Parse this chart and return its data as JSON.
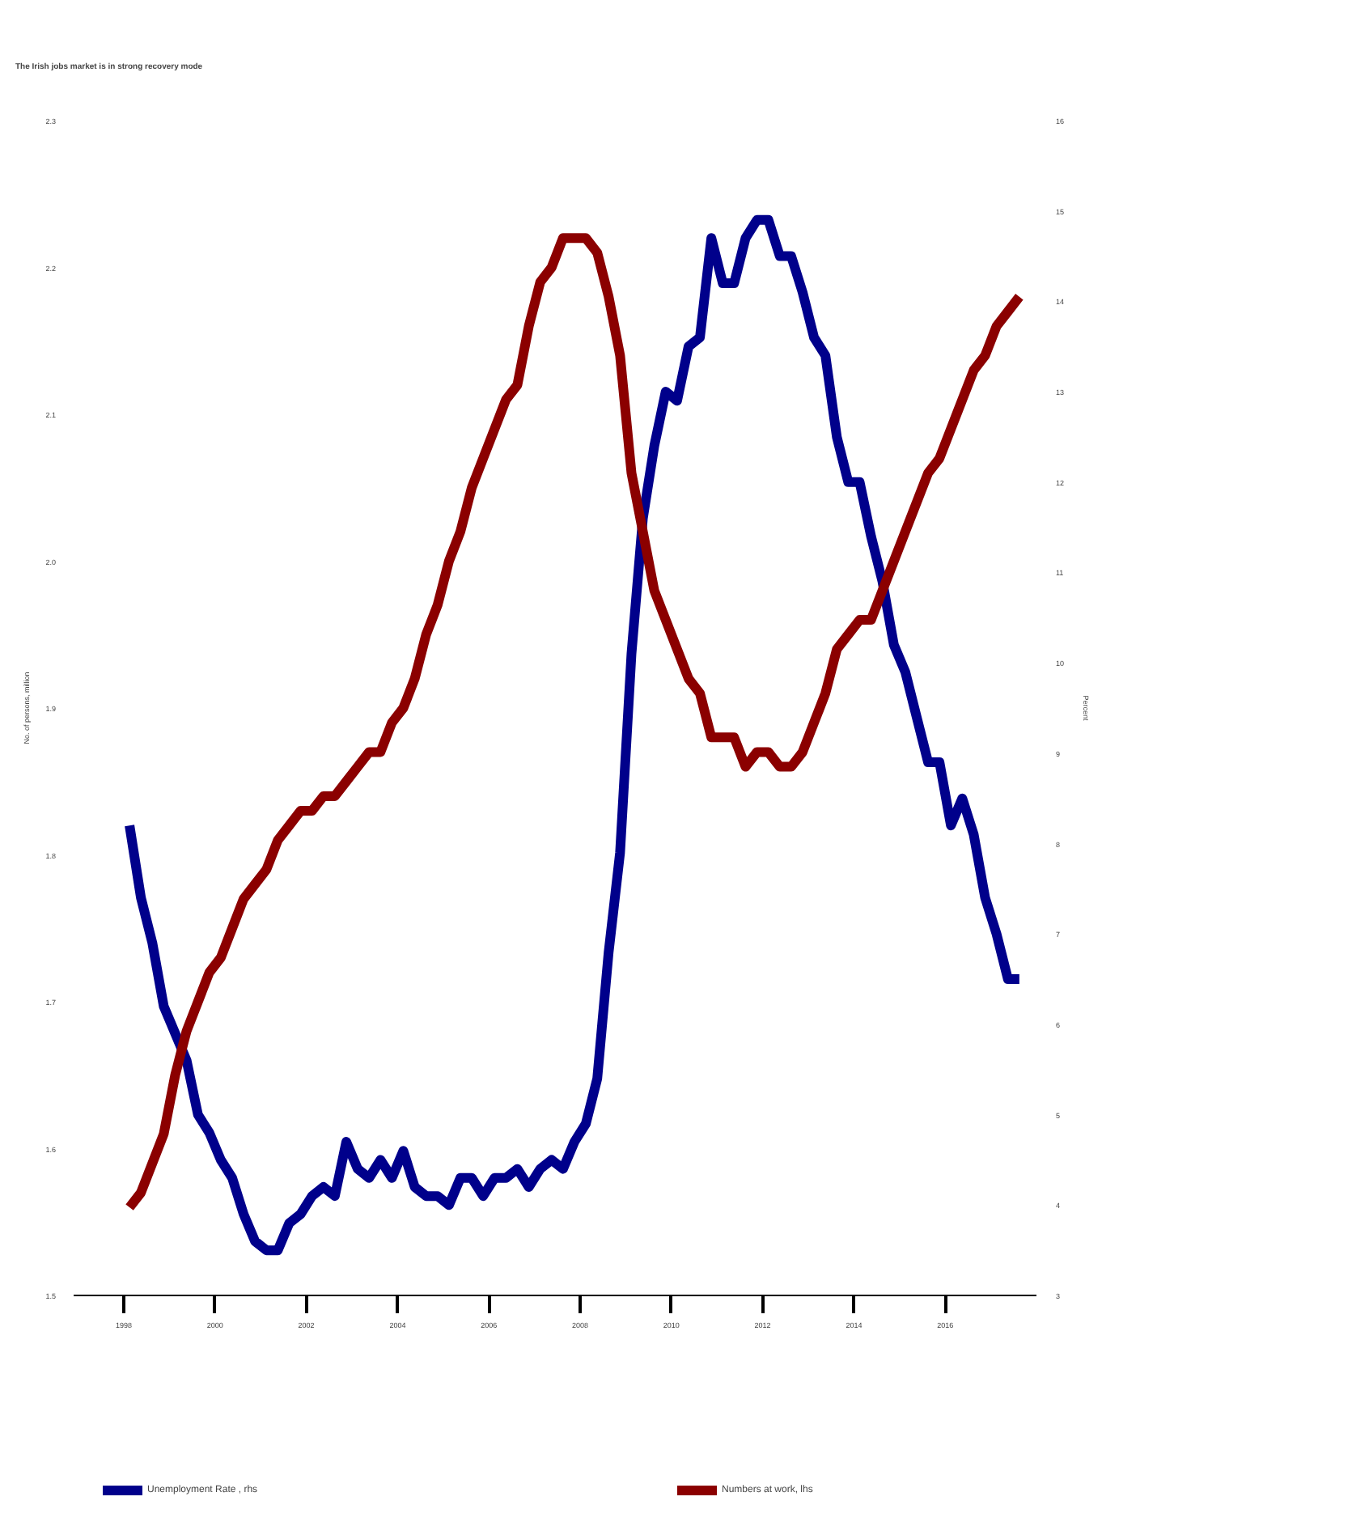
{
  "chart_data": {
    "type": "line",
    "title": "The Irish jobs market is in strong recovery mode",
    "ylabel": "No. of persons, million",
    "y2label": "Percent",
    "x": [
      1998.125,
      1998.375,
      1998.625,
      1998.875,
      1999.125,
      1999.375,
      1999.625,
      1999.875,
      2000.125,
      2000.375,
      2000.625,
      2000.875,
      2001.125,
      2001.375,
      2001.625,
      2001.875,
      2002.125,
      2002.375,
      2002.625,
      2002.875,
      2003.125,
      2003.375,
      2003.625,
      2003.875,
      2004.125,
      2004.375,
      2004.625,
      2004.875,
      2005.125,
      2005.375,
      2005.625,
      2005.875,
      2006.125,
      2006.375,
      2006.625,
      2006.875,
      2007.125,
      2007.375,
      2007.625,
      2007.875,
      2008.125,
      2008.375,
      2008.625,
      2008.875,
      2009.125,
      2009.375,
      2009.625,
      2009.875,
      2010.125,
      2010.375,
      2010.625,
      2010.875,
      2011.125,
      2011.375,
      2011.625,
      2011.875,
      2012.125,
      2012.375,
      2012.625,
      2012.875,
      2013.125,
      2013.375,
      2013.625,
      2013.875,
      2014.125,
      2014.375,
      2014.625,
      2014.875,
      2015.125,
      2015.375,
      2015.625,
      2015.875,
      2016.125,
      2016.375,
      2016.625,
      2016.875,
      2017.125,
      2017.375,
      2017.625
    ],
    "series": [
      {
        "name": "Unemployment Rate , rhs",
        "color": "#00008b",
        "axis": "y2",
        "values": [
          8.2,
          7.4,
          6.9,
          6.2,
          5.9,
          5.6,
          5.0,
          4.8,
          4.5,
          4.3,
          3.9,
          3.6,
          3.5,
          3.5,
          3.8,
          3.9,
          4.1,
          4.2,
          4.1,
          4.7,
          4.4,
          4.3,
          4.5,
          4.3,
          4.6,
          4.2,
          4.1,
          4.1,
          4.0,
          4.3,
          4.3,
          4.1,
          4.3,
          4.3,
          4.4,
          4.2,
          4.4,
          4.5,
          4.4,
          4.7,
          4.9,
          5.4,
          6.8,
          7.9,
          10.1,
          11.6,
          12.4,
          13.0,
          12.9,
          13.5,
          13.6,
          14.7,
          14.2,
          14.2,
          14.7,
          14.9,
          14.9,
          14.5,
          14.5,
          14.1,
          13.6,
          13.4,
          12.5,
          12.0,
          12.0,
          11.4,
          10.9,
          10.2,
          9.9,
          9.4,
          8.9,
          8.9,
          8.2,
          8.5,
          8.1,
          7.4,
          7.0,
          6.5,
          6.5
        ]
      },
      {
        "name": "Numbers at work, lhs",
        "color": "#8b0000",
        "values": [
          1.56,
          1.57,
          1.59,
          1.61,
          1.65,
          1.68,
          1.7,
          1.72,
          1.73,
          1.75,
          1.77,
          1.78,
          1.79,
          1.81,
          1.82,
          1.83,
          1.83,
          1.84,
          1.84,
          1.85,
          1.86,
          1.87,
          1.87,
          1.89,
          1.9,
          1.92,
          1.95,
          1.97,
          2.0,
          2.02,
          2.05,
          2.07,
          2.09,
          2.11,
          2.12,
          2.16,
          2.19,
          2.2,
          2.22,
          2.22,
          2.22,
          2.21,
          2.18,
          2.14,
          2.06,
          2.02,
          1.98,
          1.96,
          1.94,
          1.92,
          1.91,
          1.88,
          1.88,
          1.88,
          1.86,
          1.87,
          1.87,
          1.86,
          1.86,
          1.87,
          1.89,
          1.91,
          1.94,
          1.95,
          1.96,
          1.96,
          1.98,
          2.0,
          2.02,
          2.04,
          2.06,
          2.07,
          2.09,
          2.11,
          2.13,
          2.14,
          2.16,
          2.17,
          2.18
        ]
      }
    ],
    "xlim": [
      1996.9,
      2018.0
    ],
    "xticks": [
      1998,
      2000,
      2002,
      2004,
      2006,
      2008,
      2010,
      2012,
      2014,
      2016
    ],
    "ylim": [
      1.5,
      2.3
    ],
    "yticks": [
      1.5,
      1.6,
      1.7,
      1.8,
      1.9,
      {
        "value": 2.0,
        "label": "2.0"
      },
      2.1,
      2.2,
      2.3
    ],
    "y2lim": [
      3,
      16
    ],
    "y2ticks": [
      3,
      4,
      5,
      6,
      7,
      8,
      9,
      10,
      11,
      12,
      13,
      14,
      15,
      16
    ],
    "legend": "bottom",
    "grid": false,
    "marker": "none",
    "line_style": "solid"
  }
}
